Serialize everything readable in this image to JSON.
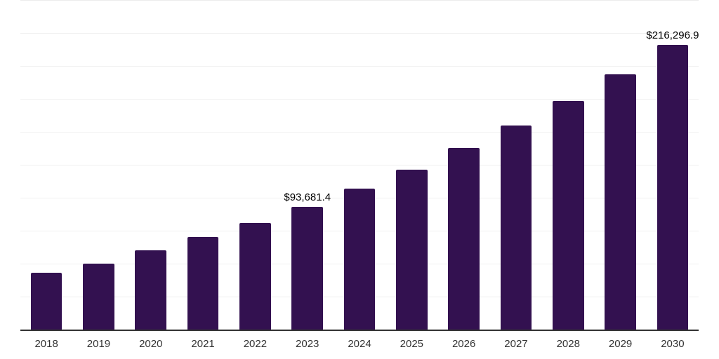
{
  "chart_data": {
    "type": "bar",
    "title": "",
    "xlabel": "",
    "ylabel": "",
    "categories": [
      "2018",
      "2019",
      "2020",
      "2021",
      "2022",
      "2023",
      "2024",
      "2025",
      "2026",
      "2027",
      "2028",
      "2029",
      "2030"
    ],
    "values": [
      43800,
      50700,
      60500,
      70600,
      81500,
      93681.4,
      107300,
      121600,
      138100,
      155100,
      174200,
      194300,
      216296.9
    ],
    "data_labels": {
      "2023": "$93,681.4",
      "2030": "$216,296.9"
    },
    "ylim": [
      0,
      250000
    ],
    "gridline_step": 25000,
    "grid": "horizontal",
    "legend_position": "none"
  },
  "style": {
    "background": "#ffffff",
    "bar_color": "#331150",
    "gridline_color": "#f0f0f0",
    "top_gridline_color": "#ececec",
    "axis_line_color": "#333333",
    "data_label_color": "#000000",
    "tick_label_color": "#333333"
  }
}
